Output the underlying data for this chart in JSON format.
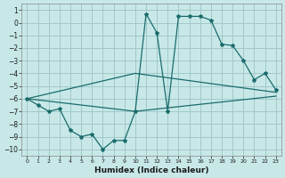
{
  "xlabel": "Humidex (Indice chaleur)",
  "ylabel": "",
  "background_color": "#c8e8e8",
  "grid_color": "#a0c8c8",
  "line_color": "#1a6b6b",
  "xlim": [
    -0.5,
    23.5
  ],
  "ylim": [
    -10.5,
    1.5
  ],
  "yticks": [
    1,
    0,
    -1,
    -2,
    -3,
    -4,
    -5,
    -6,
    -7,
    -8,
    -9,
    -10
  ],
  "xticks": [
    0,
    1,
    2,
    3,
    4,
    5,
    6,
    7,
    8,
    9,
    10,
    11,
    12,
    13,
    14,
    15,
    16,
    17,
    18,
    19,
    20,
    21,
    22,
    23
  ],
  "line1_x": [
    0,
    1,
    2,
    3,
    4,
    5,
    6,
    7,
    8,
    9,
    10,
    11,
    12,
    13,
    14,
    15,
    16,
    17,
    18,
    19,
    20,
    21,
    22,
    23
  ],
  "line1_y": [
    -6.0,
    -6.5,
    -7.0,
    -6.8,
    -8.5,
    -9.0,
    -8.8,
    -10.0,
    -9.3,
    -9.3,
    -7.0,
    0.7,
    -0.8,
    -7.0,
    0.5,
    0.5,
    0.5,
    0.2,
    -1.7,
    -1.8,
    -3.0,
    -4.5,
    -4.0,
    -5.3
  ],
  "line2_x": [
    0,
    10,
    23
  ],
  "line2_y": [
    -6.0,
    -4.0,
    -5.5
  ],
  "line3_x": [
    0,
    10,
    23
  ],
  "line3_y": [
    -6.0,
    -7.0,
    -5.8
  ]
}
